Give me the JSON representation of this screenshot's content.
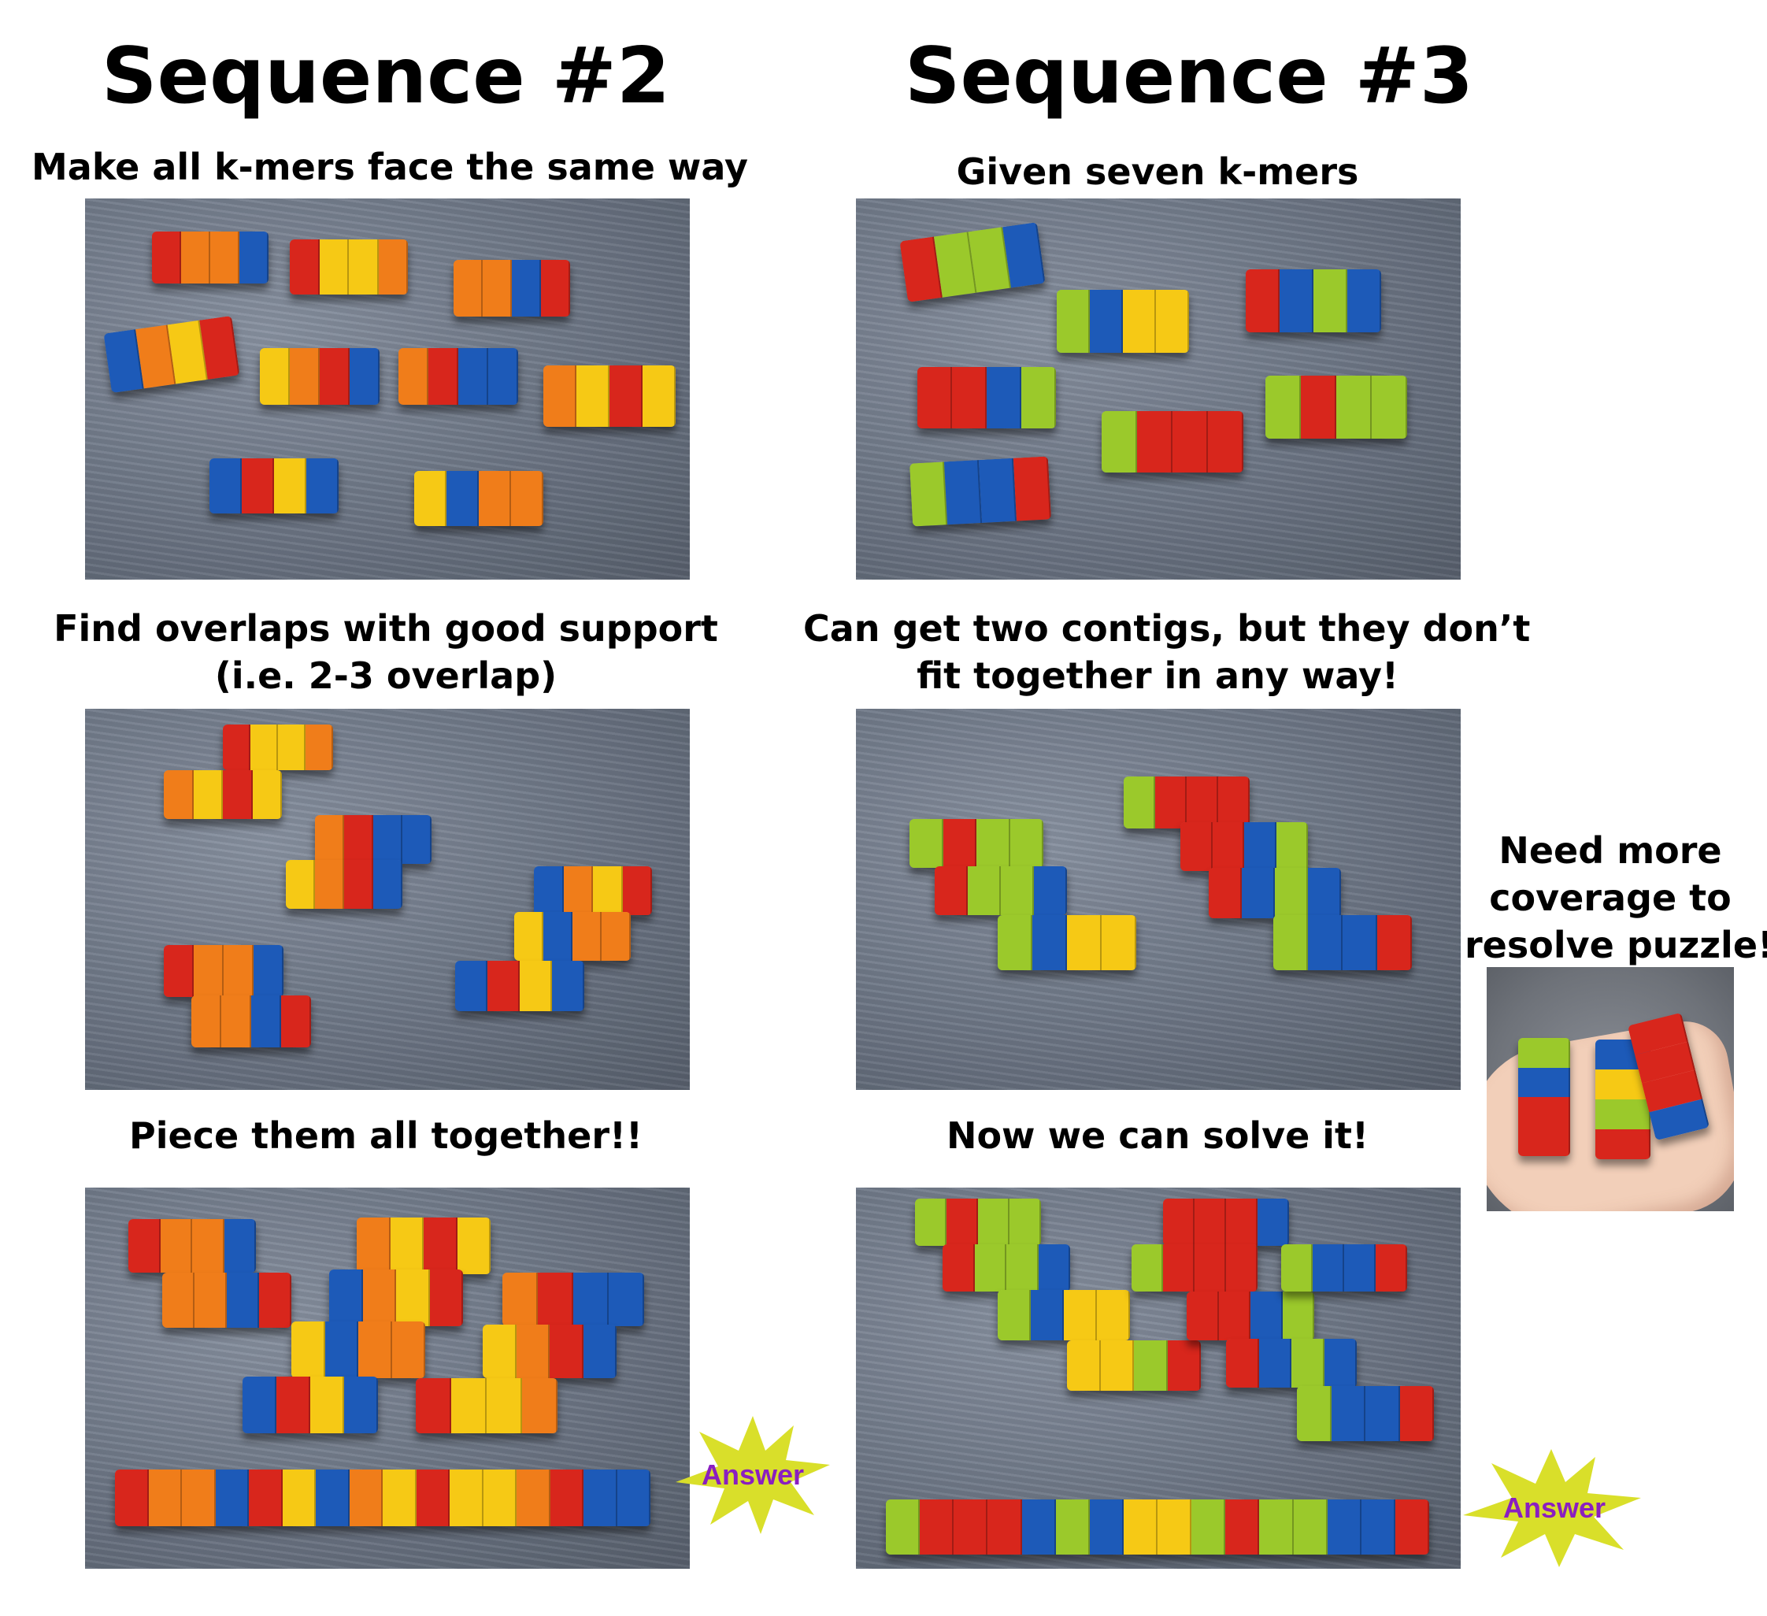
{
  "sequence2": {
    "title": "Sequence #2",
    "captions": [
      "Make all k-mers face the same way",
      "Find overlaps with good support",
      "(i.e. 2-3 overlap)",
      "Piece them all together!!"
    ],
    "answer_label": "Answer"
  },
  "sequence3": {
    "title": "Sequence #3",
    "captions": [
      "Given seven k-mers",
      "Can get two contigs, but they don’t",
      "fit together in any way!",
      "Now we can solve it!"
    ],
    "answer_label": "Answer"
  },
  "side_note": {
    "lines": [
      "Need more",
      "coverage to",
      "resolve puzzle!"
    ]
  },
  "colors": {
    "red": "#d8261c",
    "orange": "#f07d1a",
    "yellow": "#f6c915",
    "blue": "#1d5ab8",
    "green": "#9bc92b",
    "star": "#d9df2a",
    "answer_text": "#8a1fc0"
  }
}
